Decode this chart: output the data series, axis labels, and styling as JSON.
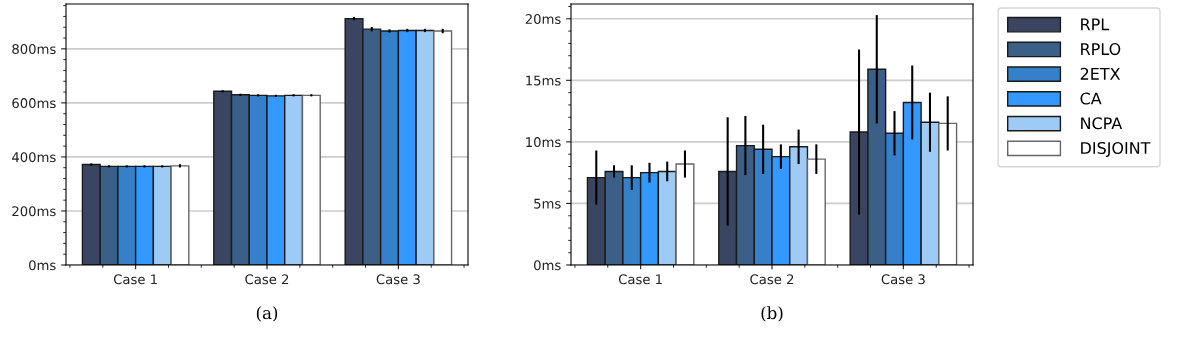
{
  "chart_data": [
    {
      "type": "bar",
      "xlabel": "(a)",
      "categories": [
        "Case 1",
        "Case 2",
        "Case 3"
      ],
      "series": [
        {
          "name": "RPL",
          "color": "#3a4562",
          "values": [
            372,
            643,
            912
          ],
          "errors": [
            4,
            4,
            6
          ]
        },
        {
          "name": "RPLO",
          "color": "#3b5f87",
          "values": [
            365,
            630,
            873
          ],
          "errors": [
            4,
            4,
            8
          ]
        },
        {
          "name": "2ETX",
          "color": "#3580c8",
          "values": [
            365,
            628,
            866
          ],
          "errors": [
            4,
            4,
            6
          ]
        },
        {
          "name": "CA",
          "color": "#3399ff",
          "values": [
            365,
            626,
            868
          ],
          "errors": [
            4,
            4,
            6
          ]
        },
        {
          "name": "NCPA",
          "color": "#9dcbf5",
          "values": [
            365,
            628,
            868
          ],
          "errors": [
            4,
            4,
            6
          ]
        },
        {
          "name": "DISJOINT",
          "color": "#ffffff",
          "values": [
            367,
            628,
            866
          ],
          "errors": [
            6,
            4,
            8
          ]
        }
      ],
      "ylim": [
        0,
        966
      ],
      "yticks": [
        {
          "value": 0,
          "label": "0ms"
        },
        {
          "value": 200,
          "label": "200ms"
        },
        {
          "value": 400,
          "label": "400ms"
        },
        {
          "value": 600,
          "label": "600ms"
        },
        {
          "value": 800,
          "label": "800ms"
        }
      ],
      "grid": "y",
      "legend": "right"
    },
    {
      "type": "bar",
      "xlabel": "(b)",
      "categories": [
        "Case 1",
        "Case 2",
        "Case 3"
      ],
      "series": [
        {
          "color": "#3a4562",
          "values": [
            7.1,
            7.6,
            10.8
          ],
          "errors": [
            2.2,
            4.4,
            6.7
          ]
        },
        {
          "color": "#3b5f87",
          "values": [
            7.6,
            9.7,
            15.9
          ],
          "errors": [
            0.5,
            2.4,
            4.4
          ]
        },
        {
          "color": "#3580c8",
          "values": [
            7.1,
            9.4,
            10.7
          ],
          "errors": [
            1.0,
            2.0,
            1.8
          ]
        },
        {
          "color": "#3399ff",
          "values": [
            7.5,
            8.8,
            13.2
          ],
          "errors": [
            0.8,
            1.0,
            3.0
          ]
        },
        {
          "color": "#9dcbf5",
          "values": [
            7.6,
            9.6,
            11.6
          ],
          "errors": [
            0.8,
            1.4,
            2.4
          ]
        },
        {
          "color": "#ffffff",
          "values": [
            8.2,
            8.6,
            11.5
          ],
          "errors": [
            1.1,
            1.2,
            2.2
          ]
        }
      ],
      "ylim": [
        0,
        21.2
      ],
      "yticks": [
        {
          "value": 0,
          "label": "0ms"
        },
        {
          "value": 5,
          "label": "5ms"
        },
        {
          "value": 10,
          "label": "10ms"
        },
        {
          "value": 15,
          "label": "15ms"
        },
        {
          "value": 20,
          "label": "20ms"
        }
      ],
      "grid": "y"
    }
  ]
}
